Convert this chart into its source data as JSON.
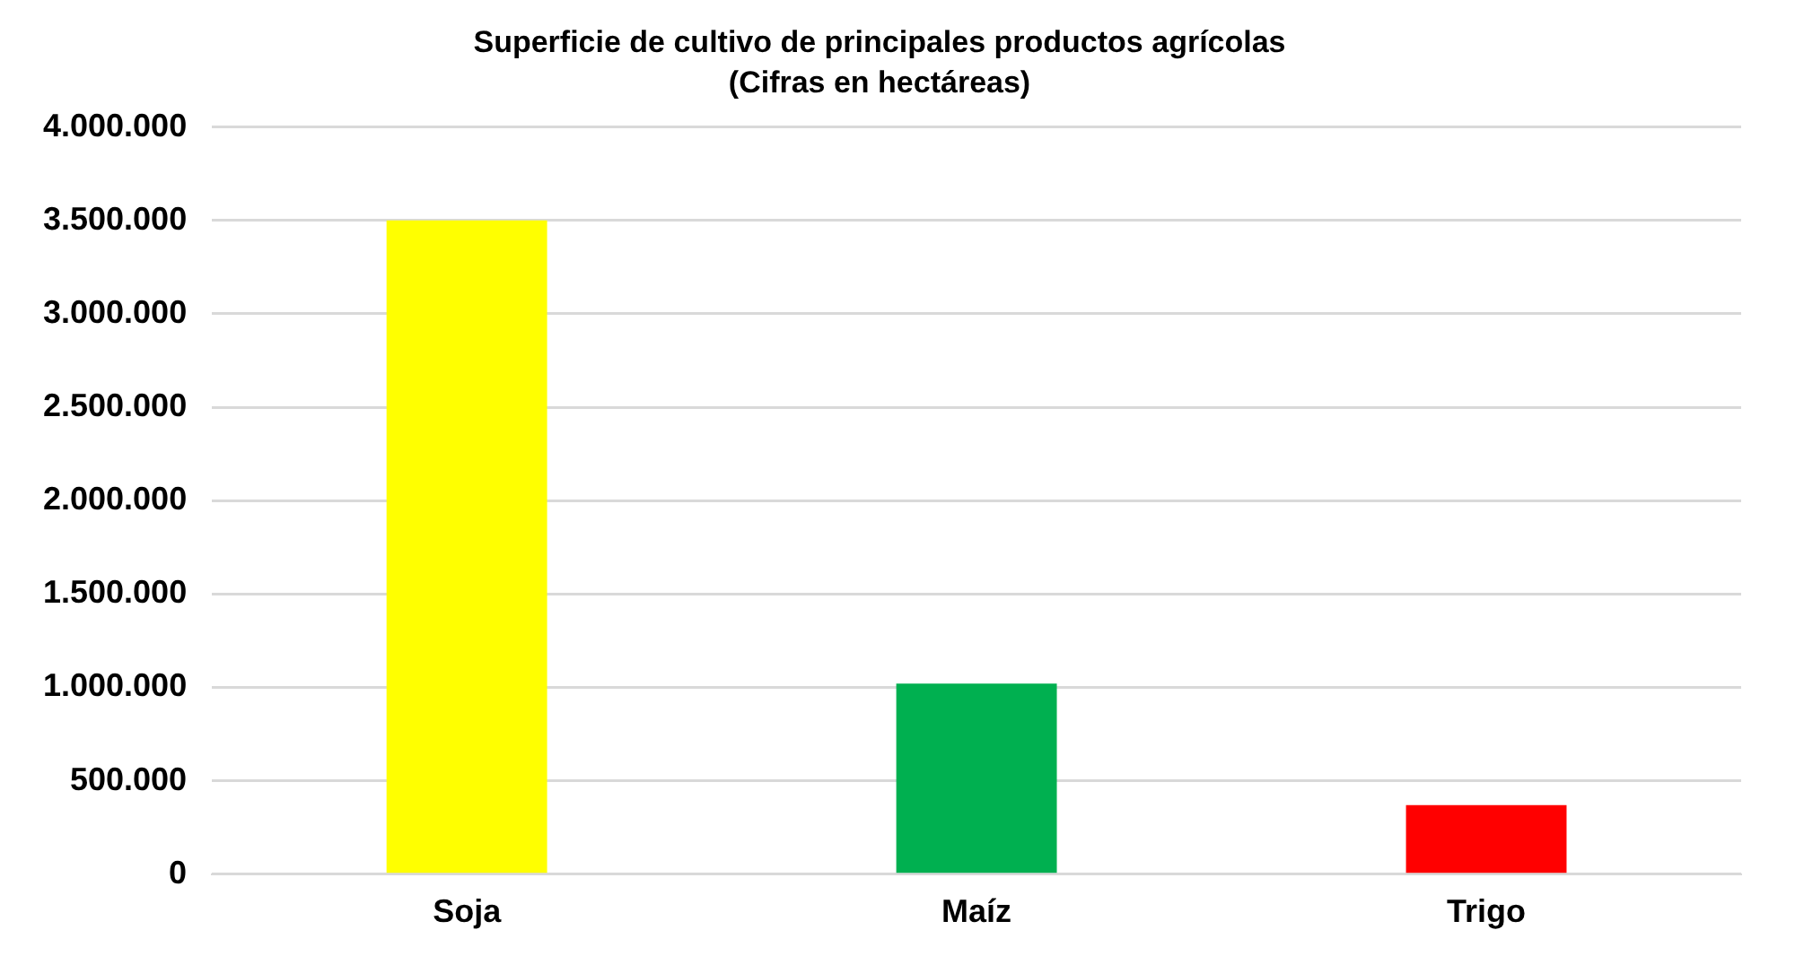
{
  "chart_data": {
    "type": "bar",
    "title": "Superficie de cultivo de principales productos agrícolas",
    "subtitle": "(Cifras en hectáreas)",
    "categories": [
      "Soja",
      "Maíz",
      "Trigo"
    ],
    "values": [
      3500000,
      1020000,
      370000
    ],
    "colors": [
      "#ffff00",
      "#00b050",
      "#ff0000"
    ],
    "ylim": [
      0,
      4000000
    ],
    "yticks": [
      {
        "value": 0,
        "label": "0"
      },
      {
        "value": 500000,
        "label": "500.000"
      },
      {
        "value": 1000000,
        "label": "1.000.000"
      },
      {
        "value": 1500000,
        "label": "1.500.000"
      },
      {
        "value": 2000000,
        "label": "2.000.000"
      },
      {
        "value": 2500000,
        "label": "2.500.000"
      },
      {
        "value": 3000000,
        "label": "3.000.000"
      },
      {
        "value": 3500000,
        "label": "3.500.000"
      },
      {
        "value": 4000000,
        "label": "4.000.000"
      }
    ],
    "grid": "y"
  }
}
